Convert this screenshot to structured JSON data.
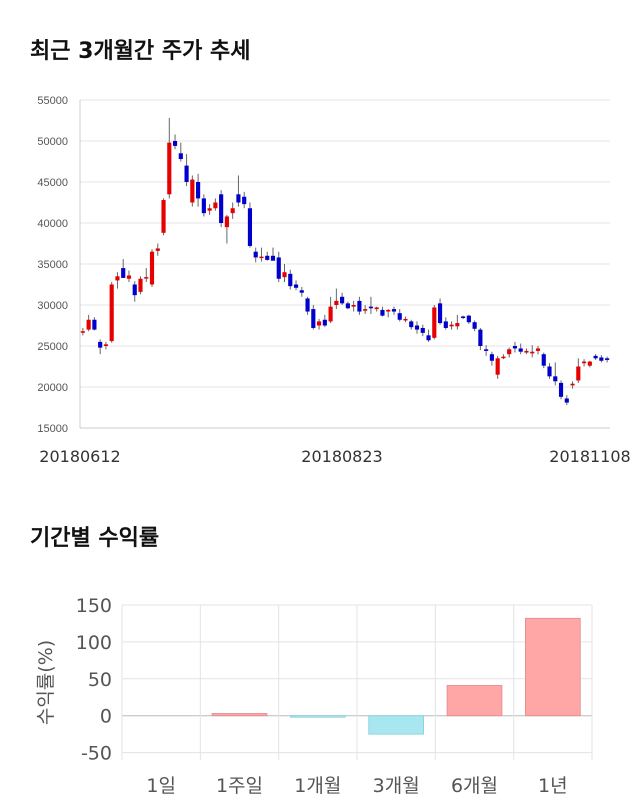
{
  "title1": "최근 3개월간 주가 추세",
  "title2": "기간별 수익률",
  "chart_data": [
    {
      "type": "candlestick",
      "ylim": [
        15000,
        55000
      ],
      "yticks": [
        15000,
        20000,
        25000,
        30000,
        35000,
        40000,
        45000,
        50000,
        55000
      ],
      "ytick_labels": [
        "15000",
        "20000",
        "25000",
        "30000",
        "35000",
        "40000",
        "45000",
        "50000",
        "55000"
      ],
      "xtick_labels": [
        "20180612",
        "20180823",
        "20181108"
      ],
      "grid": true,
      "colors": {
        "up": "#e60000",
        "down": "#0000cc",
        "wick": "#666666"
      },
      "candles": [
        [
          26700,
          27200,
          26300,
          26800
        ],
        [
          27000,
          28800,
          26800,
          28200
        ],
        [
          28200,
          28500,
          26900,
          27000
        ],
        [
          25500,
          25800,
          24000,
          24800
        ],
        [
          25000,
          25500,
          24600,
          25200
        ],
        [
          25600,
          32800,
          25400,
          32500
        ],
        [
          33000,
          34000,
          32000,
          33500
        ],
        [
          34500,
          35600,
          33500,
          33300
        ],
        [
          33200,
          34200,
          32800,
          33600
        ],
        [
          32500,
          32900,
          30400,
          31200
        ],
        [
          31600,
          33500,
          31300,
          33200
        ],
        [
          33300,
          34500,
          32800,
          33400
        ],
        [
          32500,
          36800,
          32200,
          36500
        ],
        [
          36600,
          37500,
          36000,
          36900
        ],
        [
          38800,
          43000,
          38500,
          42800
        ],
        [
          43500,
          52800,
          43000,
          49800
        ],
        [
          50000,
          50800,
          49000,
          49400
        ],
        [
          48500,
          49800,
          47500,
          47800
        ],
        [
          47000,
          48400,
          44500,
          45000
        ],
        [
          42500,
          45800,
          42000,
          45300
        ],
        [
          45000,
          46000,
          42000,
          43000
        ],
        [
          43000,
          43500,
          40800,
          41200
        ],
        [
          41500,
          42300,
          41000,
          41800
        ],
        [
          41800,
          43000,
          41500,
          42500
        ],
        [
          43500,
          44000,
          39500,
          40000
        ],
        [
          39500,
          41000,
          37500,
          40800
        ],
        [
          41200,
          42500,
          40500,
          41800
        ],
        [
          43500,
          45800,
          42000,
          42500
        ],
        [
          43200,
          43800,
          41800,
          42300
        ],
        [
          41800,
          42500,
          37000,
          37200
        ],
        [
          36500,
          37000,
          35200,
          35800
        ],
        [
          35800,
          37000,
          35300,
          35900
        ],
        [
          36000,
          36500,
          35400,
          35500
        ],
        [
          36000,
          37000,
          35500,
          35400
        ],
        [
          35800,
          36500,
          32800,
          33200
        ],
        [
          33400,
          35000,
          32800,
          34000
        ],
        [
          33800,
          34300,
          31900,
          32300
        ],
        [
          32500,
          33000,
          31800,
          32100
        ],
        [
          31800,
          32200,
          31000,
          31500
        ],
        [
          30800,
          31000,
          28800,
          29200
        ],
        [
          29500,
          30000,
          27000,
          27200
        ],
        [
          27500,
          28300,
          27000,
          28000
        ],
        [
          28200,
          28800,
          27300,
          27500
        ],
        [
          28000,
          31000,
          27800,
          29800
        ],
        [
          30000,
          32000,
          29500,
          30500
        ],
        [
          31000,
          31500,
          30000,
          30200
        ],
        [
          30200,
          30400,
          29500,
          29600
        ],
        [
          29800,
          30500,
          29200,
          30000
        ],
        [
          30500,
          31000,
          28800,
          29200
        ],
        [
          29300,
          30000,
          28900,
          29500
        ],
        [
          29800,
          31000,
          28900,
          29600
        ],
        [
          29500,
          29800,
          29200,
          29700
        ],
        [
          29400,
          29800,
          28600,
          28700
        ],
        [
          29200,
          29500,
          28500,
          29400
        ],
        [
          29500,
          29800,
          28800,
          29200
        ],
        [
          29000,
          29500,
          28000,
          28200
        ],
        [
          28200,
          28600,
          27900,
          28300
        ],
        [
          28000,
          28200,
          27000,
          27300
        ],
        [
          27500,
          28000,
          26500,
          27000
        ],
        [
          27200,
          27600,
          26200,
          26600
        ],
        [
          26300,
          27000,
          25500,
          25700
        ],
        [
          26000,
          30000,
          25800,
          29700
        ],
        [
          30200,
          30800,
          27600,
          27800
        ],
        [
          28000,
          28500,
          27000,
          27200
        ],
        [
          27400,
          28000,
          27000,
          27600
        ],
        [
          27400,
          28800,
          27000,
          27800
        ],
        [
          28600,
          28700,
          28300,
          28500
        ],
        [
          28700,
          28800,
          27700,
          27900
        ],
        [
          27900,
          28100,
          26800,
          27100
        ],
        [
          27000,
          27200,
          24500,
          25000
        ],
        [
          24600,
          25100,
          23800,
          24400
        ],
        [
          24000,
          24300,
          22600,
          23200
        ],
        [
          21500,
          23800,
          21000,
          23500
        ],
        [
          23600,
          24000,
          23400,
          23700
        ],
        [
          24000,
          24800,
          23600,
          24600
        ],
        [
          25000,
          25500,
          24200,
          24700
        ],
        [
          24700,
          25300,
          24000,
          24300
        ],
        [
          24200,
          24700,
          24000,
          24400
        ],
        [
          24100,
          25100,
          23600,
          24300
        ],
        [
          24400,
          25000,
          24000,
          24700
        ],
        [
          24000,
          24200,
          22300,
          22600
        ],
        [
          22500,
          22900,
          21000,
          21300
        ],
        [
          21300,
          23000,
          20200,
          20700
        ],
        [
          20500,
          20800,
          18500,
          18800
        ],
        [
          18600,
          19000,
          17800,
          18100
        ],
        [
          20200,
          20700,
          19800,
          20400
        ],
        [
          20800,
          23500,
          20500,
          22500
        ],
        [
          22900,
          23400,
          22500,
          23100
        ],
        [
          22600,
          23200,
          22400,
          23100
        ],
        [
          23800,
          24000,
          23300,
          23500
        ],
        [
          23600,
          23900,
          23000,
          23200
        ],
        [
          23500,
          23700,
          23000,
          23300
        ]
      ]
    },
    {
      "type": "bar",
      "categories": [
        "1일",
        "1주일",
        "1개월",
        "3개월",
        "6개월",
        "1년"
      ],
      "values": [
        0,
        3,
        -1,
        -25,
        41,
        132
      ],
      "ylabel": "수익률(%)",
      "ylim": [
        -60,
        150
      ],
      "yticks": [
        -50,
        0,
        50,
        100,
        150
      ],
      "ytick_labels": [
        "-50",
        "0",
        "50",
        "100",
        "150"
      ],
      "grid": true,
      "colors": {
        "positive": "#ffa6a6",
        "negative": "#a8e6f0"
      }
    }
  ]
}
